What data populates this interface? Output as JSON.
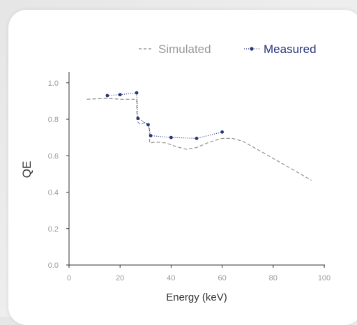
{
  "chart_data": {
    "type": "line",
    "title": "",
    "xlabel": "Energy (keV)",
    "ylabel": "QE",
    "xlim": [
      0,
      100
    ],
    "ylim": [
      0,
      1.05
    ],
    "xticks": [
      "0",
      "20",
      "40",
      "60",
      "80",
      "100"
    ],
    "yticks": [
      "0.0",
      "0.2",
      "0.4",
      "0.6",
      "0.8",
      "1.0"
    ],
    "xtick_values": [
      0,
      20,
      40,
      60,
      80,
      100
    ],
    "ytick_values": [
      0,
      0.2,
      0.4,
      0.6,
      0.8,
      1.0
    ],
    "legend_position": "top-right",
    "grid": false,
    "series": [
      {
        "name": "Simulated",
        "style": "dashed",
        "color": "#8a8a8a",
        "x": [
          7,
          15,
          20,
          26.5,
          26.6,
          28,
          30,
          31.5,
          31.6,
          34,
          38,
          42,
          46,
          50,
          55,
          60,
          64,
          68,
          75,
          85,
          95
        ],
        "y": [
          0.91,
          0.915,
          0.91,
          0.91,
          0.79,
          0.77,
          0.785,
          0.75,
          0.67,
          0.675,
          0.67,
          0.65,
          0.635,
          0.645,
          0.675,
          0.695,
          0.695,
          0.68,
          0.625,
          0.545,
          0.465
        ]
      },
      {
        "name": "Measured",
        "style": "dotted-markers",
        "color": "#27357a",
        "x": [
          15,
          20,
          26.5,
          27,
          31,
          32,
          40,
          50,
          60
        ],
        "y": [
          0.93,
          0.935,
          0.945,
          0.805,
          0.77,
          0.71,
          0.7,
          0.695,
          0.73
        ]
      }
    ]
  }
}
